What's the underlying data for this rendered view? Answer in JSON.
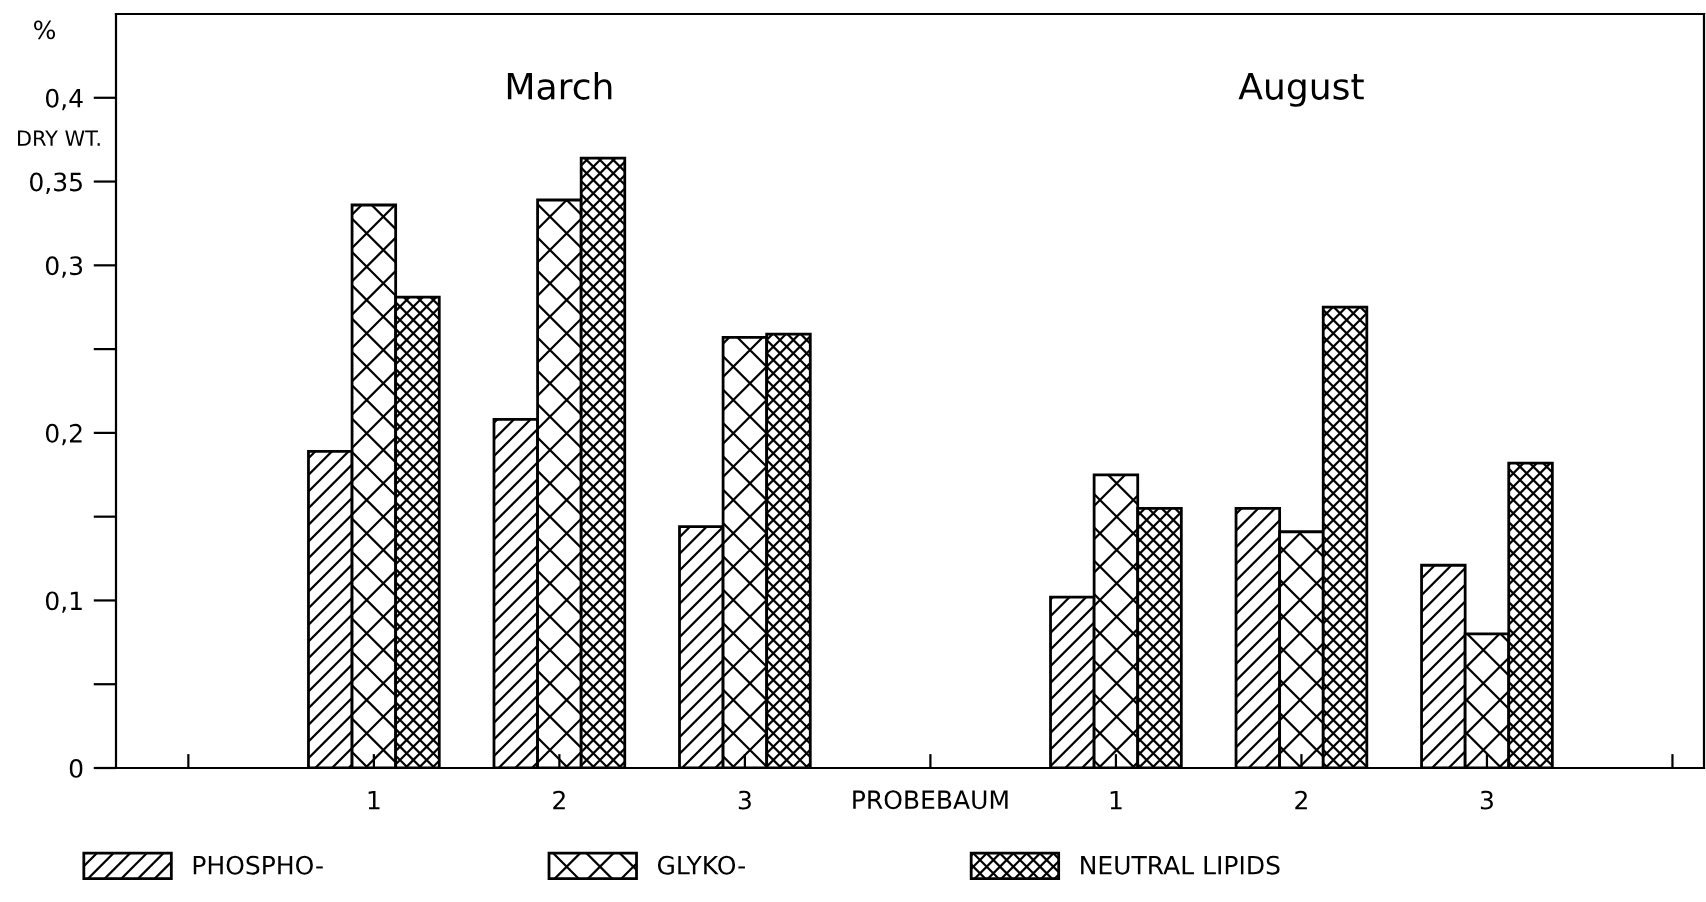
{
  "chart_data": {
    "type": "bar",
    "ylabel": "%",
    "xlabel": "PROBEBAUM",
    "annotations": [
      "DRY WT.",
      "March",
      "August"
    ],
    "categories": [
      null,
      "1",
      "2",
      "3",
      null,
      "1",
      "2",
      "3",
      null
    ],
    "series": [
      {
        "name": "PHOSPHO-",
        "color": "#000000",
        "values": [
          null,
          0.189,
          0.208,
          0.144,
          null,
          0.102,
          0.155,
          0.121,
          null
        ]
      },
      {
        "name": "GLYKO-",
        "color": "#000000",
        "values": [
          null,
          0.336,
          0.339,
          0.257,
          null,
          0.175,
          0.141,
          0.08,
          null
        ]
      },
      {
        "name": "NEUTRAL LIPIDS",
        "color": "#000000",
        "values": [
          null,
          0.281,
          0.364,
          0.259,
          null,
          0.155,
          0.275,
          0.182,
          null
        ]
      }
    ],
    "ylim": [
      0,
      0.45
    ],
    "yticks": [
      0,
      {
        "value": 0.05,
        "label": null
      },
      {
        "value": 0.1,
        "label": "0,1"
      },
      {
        "value": 0.15,
        "label": null
      },
      {
        "value": 0.2,
        "label": "0,2"
      },
      {
        "value": 0.25,
        "label": null
      },
      {
        "value": 0.3,
        "label": "0,3"
      },
      {
        "value": 0.35,
        "label": "0,35"
      },
      {
        "value": 0.4,
        "label": "0,4"
      }
    ],
    "grid": false,
    "legend": "bottom"
  }
}
